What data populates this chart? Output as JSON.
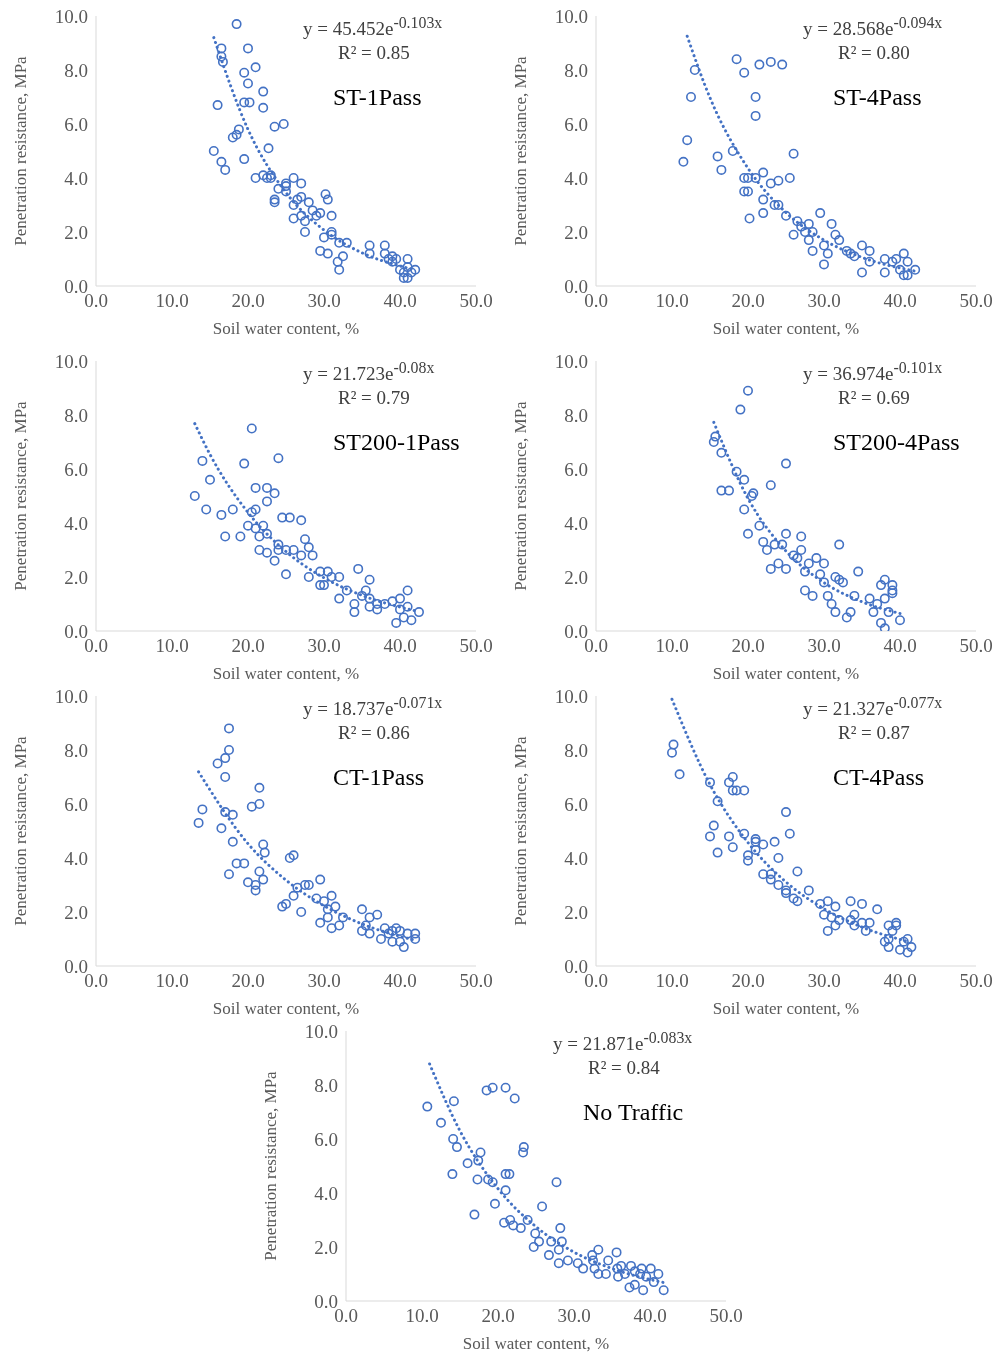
{
  "chart_data": [
    {
      "type": "scatter",
      "xlabel": "Soil water content, %",
      "ylabel": "Penetration resistance, MPa",
      "xlim": [
        0,
        50
      ],
      "ylim": [
        0,
        10
      ],
      "xticks": [
        {
          "value": 0,
          "label": "0.0"
        },
        {
          "value": 10,
          "label": "10.0"
        },
        {
          "value": 20,
          "label": "20.0"
        },
        {
          "value": 30,
          "label": "30.0"
        },
        {
          "value": 40,
          "label": "40.0"
        },
        {
          "value": 50,
          "label": "50.0"
        }
      ],
      "yticks": [
        {
          "value": 0,
          "label": "0.0"
        },
        {
          "value": 2,
          "label": "2.0"
        },
        {
          "value": 4,
          "label": "4.0"
        },
        {
          "value": 6,
          "label": "6.0"
        },
        {
          "value": 8,
          "label": "8.0"
        },
        {
          "value": 10,
          "label": "10.0"
        }
      ],
      "marker": "circle",
      "annotations": [
        "y = 45.452e$^{-0.103x}$",
        "R² = 0.85",
        "ST-1Pass"
      ],
      "series": [
        {
          "type": "scatter",
          "color": "#4472c4",
          "x": [
            15.5,
            16,
            16.5,
            16.5,
            16.7,
            16.5,
            17,
            18.5,
            18,
            18.5,
            18.8,
            19.5,
            19.5,
            19.5,
            20,
            20,
            20.2,
            21,
            21,
            22,
            22,
            22,
            22.5,
            22.7,
            23,
            23,
            23.5,
            23.5,
            23.5,
            24,
            24.7,
            25,
            25,
            25,
            26,
            26,
            26,
            26.5,
            27,
            27,
            27,
            27.5,
            27.5,
            28,
            28.5,
            29,
            29.5,
            29.5,
            30,
            30.2,
            30.5,
            30.5,
            31,
            31,
            31,
            31.8,
            32,
            32,
            32.5,
            33,
            36,
            36,
            38,
            38,
            38.5,
            39,
            39,
            39.5,
            40,
            40.5,
            40.5,
            41,
            41,
            41,
            41.5,
            42
          ],
          "values": [
            5.0,
            6.7,
            8.8,
            8.5,
            8.3,
            4.6,
            4.3,
            9.7,
            5.5,
            5.6,
            5.8,
            7.9,
            6.8,
            4.7,
            8.8,
            7.5,
            6.8,
            8.1,
            4.0,
            7.2,
            6.6,
            4.1,
            4.0,
            5.1,
            4.1,
            4.0,
            5.9,
            3.2,
            3.1,
            3.6,
            6.0,
            3.8,
            3.7,
            3.5,
            4.0,
            3.0,
            2.5,
            3.2,
            3.8,
            3.3,
            2.6,
            2.0,
            2.4,
            3.1,
            2.8,
            2.6,
            2.7,
            1.3,
            1.8,
            3.4,
            3.2,
            1.2,
            2.6,
            2.0,
            1.9,
            0.9,
            0.6,
            1.6,
            1.1,
            1.6,
            1.5,
            1.2,
            1.5,
            1.2,
            1.0,
            1.1,
            0.9,
            1.0,
            0.6,
            0.5,
            0.3,
            1.0,
            0.7,
            0.3,
            0.5,
            0.6
          ]
        },
        {
          "type": "line",
          "color": "#4472c4",
          "line_style": "dotted",
          "marker": "none",
          "x": [
            15.5,
            20,
            25,
            30,
            35,
            40,
            42
          ],
          "values": [
            9.2,
            5.8,
            3.46,
            2.07,
            1.23,
            0.74,
            0.6
          ]
        }
      ]
    },
    {
      "type": "scatter",
      "xlabel": "Soil water content, %",
      "ylabel": "Penetration resistance, MPa",
      "xlim": [
        0,
        50
      ],
      "ylim": [
        0,
        10
      ],
      "xticks": [
        {
          "value": 0,
          "label": "0.0"
        },
        {
          "value": 10,
          "label": "10.0"
        },
        {
          "value": 20,
          "label": "20.0"
        },
        {
          "value": 30,
          "label": "30.0"
        },
        {
          "value": 40,
          "label": "40.0"
        },
        {
          "value": 50,
          "label": "50.0"
        }
      ],
      "yticks": [
        {
          "value": 0,
          "label": "0.0"
        },
        {
          "value": 2,
          "label": "2.0"
        },
        {
          "value": 4,
          "label": "4.0"
        },
        {
          "value": 6,
          "label": "6.0"
        },
        {
          "value": 8,
          "label": "8.0"
        },
        {
          "value": 10,
          "label": "10.0"
        }
      ],
      "marker": "circle",
      "annotations": [
        "y = 28.568e$^{-0.094x}$",
        "R² = 0.80",
        "ST-4Pass"
      ],
      "series": [
        {
          "type": "scatter",
          "color": "#4472c4",
          "x": [
            11.5,
            12,
            12.5,
            13,
            16,
            16.5,
            18.5,
            18,
            19.5,
            19.5,
            19.5,
            20,
            20,
            20.2,
            21,
            21,
            21,
            21.5,
            22,
            22,
            22,
            23,
            23,
            23.5,
            24,
            24,
            24.5,
            25,
            25.5,
            26,
            26,
            26.5,
            27,
            27.5,
            28,
            28,
            28.5,
            28.5,
            29.5,
            30,
            30,
            30.5,
            31,
            31.5,
            32,
            33,
            33.5,
            34,
            35,
            35,
            36,
            36,
            38,
            38,
            39,
            39.5,
            40,
            40.5,
            40.5,
            41,
            41,
            42
          ],
          "values": [
            4.6,
            5.4,
            7.0,
            8.0,
            4.8,
            4.3,
            8.4,
            5.0,
            7.9,
            4.0,
            3.5,
            3.5,
            4.0,
            2.5,
            7.0,
            6.3,
            4.0,
            8.2,
            4.2,
            3.2,
            2.7,
            8.3,
            3.8,
            3.0,
            3.0,
            3.9,
            8.2,
            2.6,
            4.0,
            4.9,
            1.9,
            2.4,
            2.2,
            2.0,
            2.3,
            1.7,
            2.0,
            1.3,
            2.7,
            0.8,
            1.5,
            1.2,
            2.3,
            1.9,
            1.7,
            1.3,
            1.2,
            1.1,
            1.5,
            0.5,
            1.3,
            0.9,
            1.0,
            0.5,
            0.9,
            1.0,
            0.6,
            1.2,
            0.4,
            0.9,
            0.4,
            0.6
          ]
        },
        {
          "type": "line",
          "color": "#4472c4",
          "line_style": "dotted",
          "marker": "none",
          "x": [
            12,
            15,
            20,
            25,
            30,
            35,
            42
          ],
          "values": [
            9.25,
            6.97,
            4.36,
            2.72,
            1.7,
            1.06,
            0.55
          ]
        }
      ]
    },
    {
      "type": "scatter",
      "xlabel": "Soil water content, %",
      "ylabel": "Penetration resistance, MPa",
      "xlim": [
        0,
        50
      ],
      "ylim": [
        0,
        10
      ],
      "xticks": [
        {
          "value": 0,
          "label": "0.0"
        },
        {
          "value": 10,
          "label": "10.0"
        },
        {
          "value": 20,
          "label": "20.0"
        },
        {
          "value": 30,
          "label": "30.0"
        },
        {
          "value": 40,
          "label": "40.0"
        },
        {
          "value": 50,
          "label": "50.0"
        }
      ],
      "yticks": [
        {
          "value": 0,
          "label": "0.0"
        },
        {
          "value": 2,
          "label": "2.0"
        },
        {
          "value": 4,
          "label": "4.0"
        },
        {
          "value": 6,
          "label": "6.0"
        },
        {
          "value": 8,
          "label": "8.0"
        },
        {
          "value": 10,
          "label": "10.0"
        }
      ],
      "marker": "circle",
      "annotations": [
        "y = 21.723e$^{-0.08x}$",
        "R² = 0.79",
        "ST200-1Pass"
      ],
      "series": [
        {
          "type": "scatter",
          "color": "#4472c4",
          "x": [
            13,
            14,
            14.5,
            15,
            16.5,
            17,
            18,
            19,
            19.5,
            20,
            20.5,
            20.5,
            21,
            21,
            21,
            21.5,
            21.5,
            22,
            22.5,
            22.5,
            22.5,
            22.5,
            23.5,
            23.5,
            24,
            24,
            24,
            24.5,
            25,
            25,
            25.5,
            26,
            27,
            27,
            27.5,
            28,
            28,
            28.5,
            29.5,
            29.5,
            30,
            30.5,
            31,
            32,
            32,
            33,
            34,
            34,
            34.5,
            35,
            35.5,
            36,
            36,
            36,
            37,
            37,
            38,
            39,
            39.5,
            40,
            40,
            40.5,
            41,
            41,
            41.5,
            42.5
          ],
          "values": [
            5.0,
            6.3,
            4.5,
            5.6,
            4.3,
            3.5,
            4.5,
            3.5,
            6.2,
            3.9,
            4.4,
            7.5,
            5.3,
            4.5,
            3.8,
            3.0,
            3.5,
            3.9,
            5.3,
            4.8,
            3.6,
            2.9,
            5.1,
            2.6,
            6.4,
            3.2,
            3.0,
            4.2,
            3.0,
            2.1,
            4.2,
            3.0,
            4.1,
            2.8,
            3.4,
            3.1,
            2.0,
            2.8,
            2.2,
            1.7,
            1.7,
            2.2,
            2.0,
            1.2,
            2.0,
            1.5,
            1.0,
            0.7,
            2.3,
            1.3,
            1.5,
            1.9,
            1.2,
            0.9,
            1.0,
            0.8,
            1.0,
            1.1,
            0.3,
            1.2,
            0.8,
            0.5,
            1.5,
            0.9,
            0.4,
            0.7
          ]
        },
        {
          "type": "line",
          "color": "#4472c4",
          "line_style": "dotted",
          "marker": "none",
          "x": [
            13,
            15,
            20,
            25,
            30,
            35,
            42
          ],
          "values": [
            7.68,
            6.54,
            4.39,
            2.94,
            1.97,
            1.32,
            0.75
          ]
        }
      ]
    },
    {
      "type": "scatter",
      "xlabel": "Soil water content, %",
      "ylabel": "Penetration resistance, MPa",
      "xlim": [
        0,
        50
      ],
      "ylim": [
        0,
        10
      ],
      "xticks": [
        {
          "value": 0,
          "label": "0.0"
        },
        {
          "value": 10,
          "label": "10.0"
        },
        {
          "value": 20,
          "label": "20.0"
        },
        {
          "value": 30,
          "label": "30.0"
        },
        {
          "value": 40,
          "label": "40.0"
        },
        {
          "value": 50,
          "label": "50.0"
        }
      ],
      "yticks": [
        {
          "value": 0,
          "label": "0.0"
        },
        {
          "value": 2,
          "label": "2.0"
        },
        {
          "value": 4,
          "label": "4.0"
        },
        {
          "value": 6,
          "label": "6.0"
        },
        {
          "value": 8,
          "label": "8.0"
        },
        {
          "value": 10,
          "label": "10.0"
        }
      ],
      "marker": "circle",
      "annotations": [
        "y = 36.974e$^{-0.101x}$",
        "R² = 0.69",
        "ST200-4Pass"
      ],
      "series": [
        {
          "type": "scatter",
          "color": "#4472c4",
          "x": [
            15.5,
            15.7,
            16.5,
            16.5,
            17.5,
            18.5,
            19,
            19.5,
            19.5,
            20,
            20,
            20.5,
            20.7,
            21.5,
            22,
            22.5,
            23,
            23,
            23.5,
            24,
            24.5,
            25,
            25,
            25,
            26,
            26.5,
            27,
            27,
            27.5,
            27.5,
            28,
            28.5,
            29,
            29.5,
            30,
            30,
            30.5,
            31,
            31.5,
            31.5,
            32,
            32,
            32.5,
            33,
            33.5,
            34,
            34.5,
            36,
            36.5,
            37,
            37.5,
            37.5,
            38,
            38,
            38,
            38.5,
            39,
            39,
            39,
            40
          ],
          "values": [
            7.0,
            7.2,
            5.2,
            6.6,
            5.2,
            5.9,
            8.2,
            5.6,
            4.5,
            8.9,
            3.6,
            5.0,
            5.1,
            3.9,
            3.3,
            3.0,
            5.4,
            2.3,
            3.2,
            2.5,
            3.2,
            6.2,
            2.3,
            3.6,
            2.8,
            2.7,
            3.5,
            3.0,
            1.5,
            2.2,
            2.5,
            1.3,
            2.7,
            2.1,
            1.8,
            2.5,
            1.3,
            1.0,
            2.0,
            0.7,
            3.2,
            1.9,
            1.8,
            0.5,
            0.7,
            1.3,
            2.2,
            1.2,
            0.7,
            1.0,
            0.3,
            1.7,
            0.1,
            1.2,
            1.9,
            0.7,
            1.4,
            1.7,
            1.5,
            0.4
          ]
        },
        {
          "type": "line",
          "color": "#4472c4",
          "line_style": "dotted",
          "marker": "none",
          "x": [
            15.5,
            20,
            25,
            30,
            35,
            40
          ],
          "values": [
            7.73,
            4.91,
            2.96,
            1.79,
            1.08,
            0.65
          ]
        }
      ]
    },
    {
      "type": "scatter",
      "xlabel": "Soil water content, %",
      "ylabel": "Penetration resistance, MPa",
      "xlim": [
        0,
        50
      ],
      "ylim": [
        0,
        10
      ],
      "xticks": [
        {
          "value": 0,
          "label": "0.0"
        },
        {
          "value": 10,
          "label": "10.0"
        },
        {
          "value": 20,
          "label": "20.0"
        },
        {
          "value": 30,
          "label": "30.0"
        },
        {
          "value": 40,
          "label": "40.0"
        },
        {
          "value": 50,
          "label": "50.0"
        }
      ],
      "yticks": [
        {
          "value": 0,
          "label": "0.0"
        },
        {
          "value": 2,
          "label": "2.0"
        },
        {
          "value": 4,
          "label": "4.0"
        },
        {
          "value": 6,
          "label": "6.0"
        },
        {
          "value": 8,
          "label": "8.0"
        },
        {
          "value": 10,
          "label": "10.0"
        }
      ],
      "marker": "circle",
      "annotations": [
        "y = 18.737e$^{-0.071x}$",
        "R² = 0.86",
        "CT-1Pass"
      ],
      "series": [
        {
          "type": "scatter",
          "color": "#4472c4",
          "x": [
            13.5,
            14,
            16,
            16.5,
            17,
            17,
            17.5,
            17.5,
            17,
            17.5,
            18,
            18,
            18.5,
            19.5,
            20,
            20.5,
            21,
            21,
            21.5,
            21.5,
            21.5,
            22,
            22,
            22.2,
            24.5,
            25,
            25.5,
            26,
            26,
            26.5,
            27,
            27.5,
            28,
            29,
            29.5,
            29.5,
            30,
            30.5,
            30.5,
            31,
            31,
            31.5,
            32,
            32.5,
            35,
            35,
            35.5,
            36,
            36,
            37,
            37.5,
            38,
            38.5,
            39,
            39,
            39.5,
            40,
            40,
            40.5,
            41,
            42,
            42
          ],
          "values": [
            5.3,
            5.8,
            7.5,
            5.1,
            7.0,
            7.7,
            8.0,
            8.8,
            5.7,
            3.4,
            4.6,
            5.6,
            3.8,
            3.8,
            3.1,
            5.9,
            3.0,
            2.8,
            3.5,
            6.6,
            6.0,
            3.2,
            4.5,
            4.2,
            2.2,
            2.3,
            4.0,
            4.1,
            2.6,
            2.9,
            2.0,
            3.0,
            3.0,
            2.5,
            3.2,
            1.6,
            2.4,
            1.8,
            2.1,
            1.4,
            2.6,
            2.2,
            1.5,
            1.8,
            2.1,
            1.3,
            1.5,
            1.8,
            1.2,
            1.9,
            1.0,
            1.4,
            1.2,
            0.9,
            1.3,
            1.4,
            0.9,
            1.3,
            0.7,
            1.2,
            1.0,
            1.2
          ]
        },
        {
          "type": "line",
          "color": "#4472c4",
          "line_style": "dotted",
          "marker": "none",
          "x": [
            13.5,
            20,
            25,
            30,
            35,
            42
          ],
          "values": [
            7.19,
            4.53,
            3.18,
            2.23,
            1.56,
            0.95
          ]
        }
      ]
    },
    {
      "type": "scatter",
      "xlabel": "Soil water content, %",
      "ylabel": "Penetration resistance, MPa",
      "xlim": [
        0,
        50
      ],
      "ylim": [
        0,
        10
      ],
      "xticks": [
        {
          "value": 0,
          "label": "0.0"
        },
        {
          "value": 10,
          "label": "10.0"
        },
        {
          "value": 20,
          "label": "20.0"
        },
        {
          "value": 30,
          "label": "30.0"
        },
        {
          "value": 40,
          "label": "40.0"
        },
        {
          "value": 50,
          "label": "50.0"
        }
      ],
      "yticks": [
        {
          "value": 0,
          "label": "0.0"
        },
        {
          "value": 2,
          "label": "2.0"
        },
        {
          "value": 4,
          "label": "4.0"
        },
        {
          "value": 6,
          "label": "6.0"
        },
        {
          "value": 8,
          "label": "8.0"
        },
        {
          "value": 10,
          "label": "10.0"
        }
      ],
      "marker": "circle",
      "annotations": [
        "y = 21.327e$^{-0.077x}$",
        "R² = 0.87",
        "CT-4Pass"
      ],
      "series": [
        {
          "type": "scatter",
          "color": "#4472c4",
          "x": [
            10,
            10.2,
            11,
            15,
            15,
            15.5,
            16,
            16,
            17.5,
            17.5,
            18,
            18,
            18,
            18.5,
            19.5,
            19.5,
            20,
            20,
            21,
            21,
            21,
            22,
            22,
            23,
            23,
            23.5,
            24,
            24,
            25,
            25,
            25,
            25.5,
            26,
            26.5,
            26.5,
            28,
            29.5,
            30,
            30.5,
            30.5,
            31,
            31.5,
            31.5,
            32,
            33.5,
            33.5,
            34,
            34,
            35,
            35,
            35.5,
            36,
            37,
            38,
            38.5,
            38.5,
            38.5,
            39,
            39.5,
            39.5,
            40,
            40.5,
            41,
            41,
            41.5
          ],
          "values": [
            7.9,
            8.2,
            7.1,
            4.8,
            6.8,
            5.2,
            6.1,
            4.2,
            6.8,
            4.8,
            7.0,
            6.5,
            4.4,
            6.5,
            6.5,
            4.9,
            4.1,
            3.9,
            4.3,
            4.6,
            4.7,
            4.5,
            3.4,
            3.4,
            3.2,
            4.6,
            3.0,
            4.0,
            5.7,
            2.7,
            2.8,
            4.9,
            2.5,
            3.5,
            2.4,
            2.8,
            2.3,
            1.9,
            1.3,
            2.4,
            1.8,
            1.5,
            2.2,
            1.7,
            1.7,
            2.4,
            1.9,
            1.5,
            2.3,
            1.6,
            1.3,
            1.6,
            2.1,
            0.9,
            1.5,
            1.0,
            0.7,
            1.3,
            1.5,
            1.6,
            0.6,
            0.9,
            1.0,
            0.5,
            0.7
          ]
        },
        {
          "type": "line",
          "color": "#4472c4",
          "line_style": "dotted",
          "marker": "none",
          "x": [
            10,
            15,
            20,
            25,
            30,
            35,
            41
          ],
          "values": [
            9.88,
            6.72,
            4.57,
            3.11,
            2.12,
            1.44,
            0.91
          ]
        }
      ]
    },
    {
      "type": "scatter",
      "xlabel": "Soil water content, %",
      "ylabel": "Penetration resistance, MPa",
      "xlim": [
        0,
        50
      ],
      "ylim": [
        0,
        10
      ],
      "xticks": [
        {
          "value": 0,
          "label": "0.0"
        },
        {
          "value": 10,
          "label": "10.0"
        },
        {
          "value": 20,
          "label": "20.0"
        },
        {
          "value": 30,
          "label": "30.0"
        },
        {
          "value": 40,
          "label": "40.0"
        },
        {
          "value": 50,
          "label": "50.0"
        }
      ],
      "yticks": [
        {
          "value": 0,
          "label": "0.0"
        },
        {
          "value": 2,
          "label": "2.0"
        },
        {
          "value": 4,
          "label": "4.0"
        },
        {
          "value": 6,
          "label": "6.0"
        },
        {
          "value": 8,
          "label": "8.0"
        },
        {
          "value": 10,
          "label": "10.0"
        }
      ],
      "marker": "circle",
      "annotations": [
        "y = 21.871e$^{-0.083x}$",
        "R² = 0.84",
        "No Traffic"
      ],
      "series": [
        {
          "type": "scatter",
          "color": "#4472c4",
          "x": [
            10.7,
            12.5,
            14.2,
            14.1,
            14.6,
            14.0,
            16.0,
            17.4,
            17.7,
            17.3,
            16.9,
            18.5,
            19.3,
            21.0,
            22.2,
            18.7,
            19.3,
            19.6,
            21.0,
            21.5,
            21.0,
            20.8,
            21.6,
            22.0,
            23.0,
            23.3,
            23.4,
            23.9,
            25.8,
            24.9,
            24.7,
            25.4,
            27.0,
            26.7,
            27.7,
            28.2,
            28.4,
            28.0,
            28.0,
            29.2,
            30.5,
            31.2,
            32.4,
            32.5,
            32.7,
            33.2,
            33.2,
            34.2,
            34.5,
            35.6,
            35.7,
            35.8,
            36.2,
            36.7,
            37.3,
            37.5,
            38.0,
            38.0,
            38.7,
            38.9,
            39.1,
            39.5,
            40.1,
            40.5,
            41.1,
            41.8
          ],
          "values": [
            7.2,
            6.6,
            7.4,
            6.0,
            5.7,
            4.7,
            5.1,
            5.2,
            5.5,
            4.5,
            3.2,
            7.8,
            7.9,
            7.9,
            7.5,
            4.5,
            4.4,
            3.6,
            4.7,
            4.7,
            4.1,
            2.9,
            3.0,
            2.8,
            2.7,
            5.5,
            5.7,
            3.0,
            3.5,
            2.5,
            2.0,
            2.2,
            2.2,
            1.7,
            4.4,
            2.7,
            2.2,
            1.9,
            1.4,
            1.5,
            1.4,
            1.2,
            1.7,
            1.5,
            1.2,
            1.9,
            1.0,
            1.0,
            1.5,
            1.8,
            1.2,
            0.9,
            1.3,
            1.0,
            0.5,
            1.3,
            0.6,
            1.1,
            1.0,
            1.2,
            0.4,
            0.9,
            1.2,
            0.7,
            1.0,
            0.4
          ]
        },
        {
          "type": "line",
          "color": "#4472c4",
          "line_style": "dotted",
          "marker": "none",
          "x": [
            11,
            15,
            20,
            25,
            30,
            35,
            42
          ],
          "values": [
            8.78,
            6.3,
            4.16,
            2.75,
            1.81,
            1.2,
            0.67
          ]
        }
      ]
    }
  ]
}
